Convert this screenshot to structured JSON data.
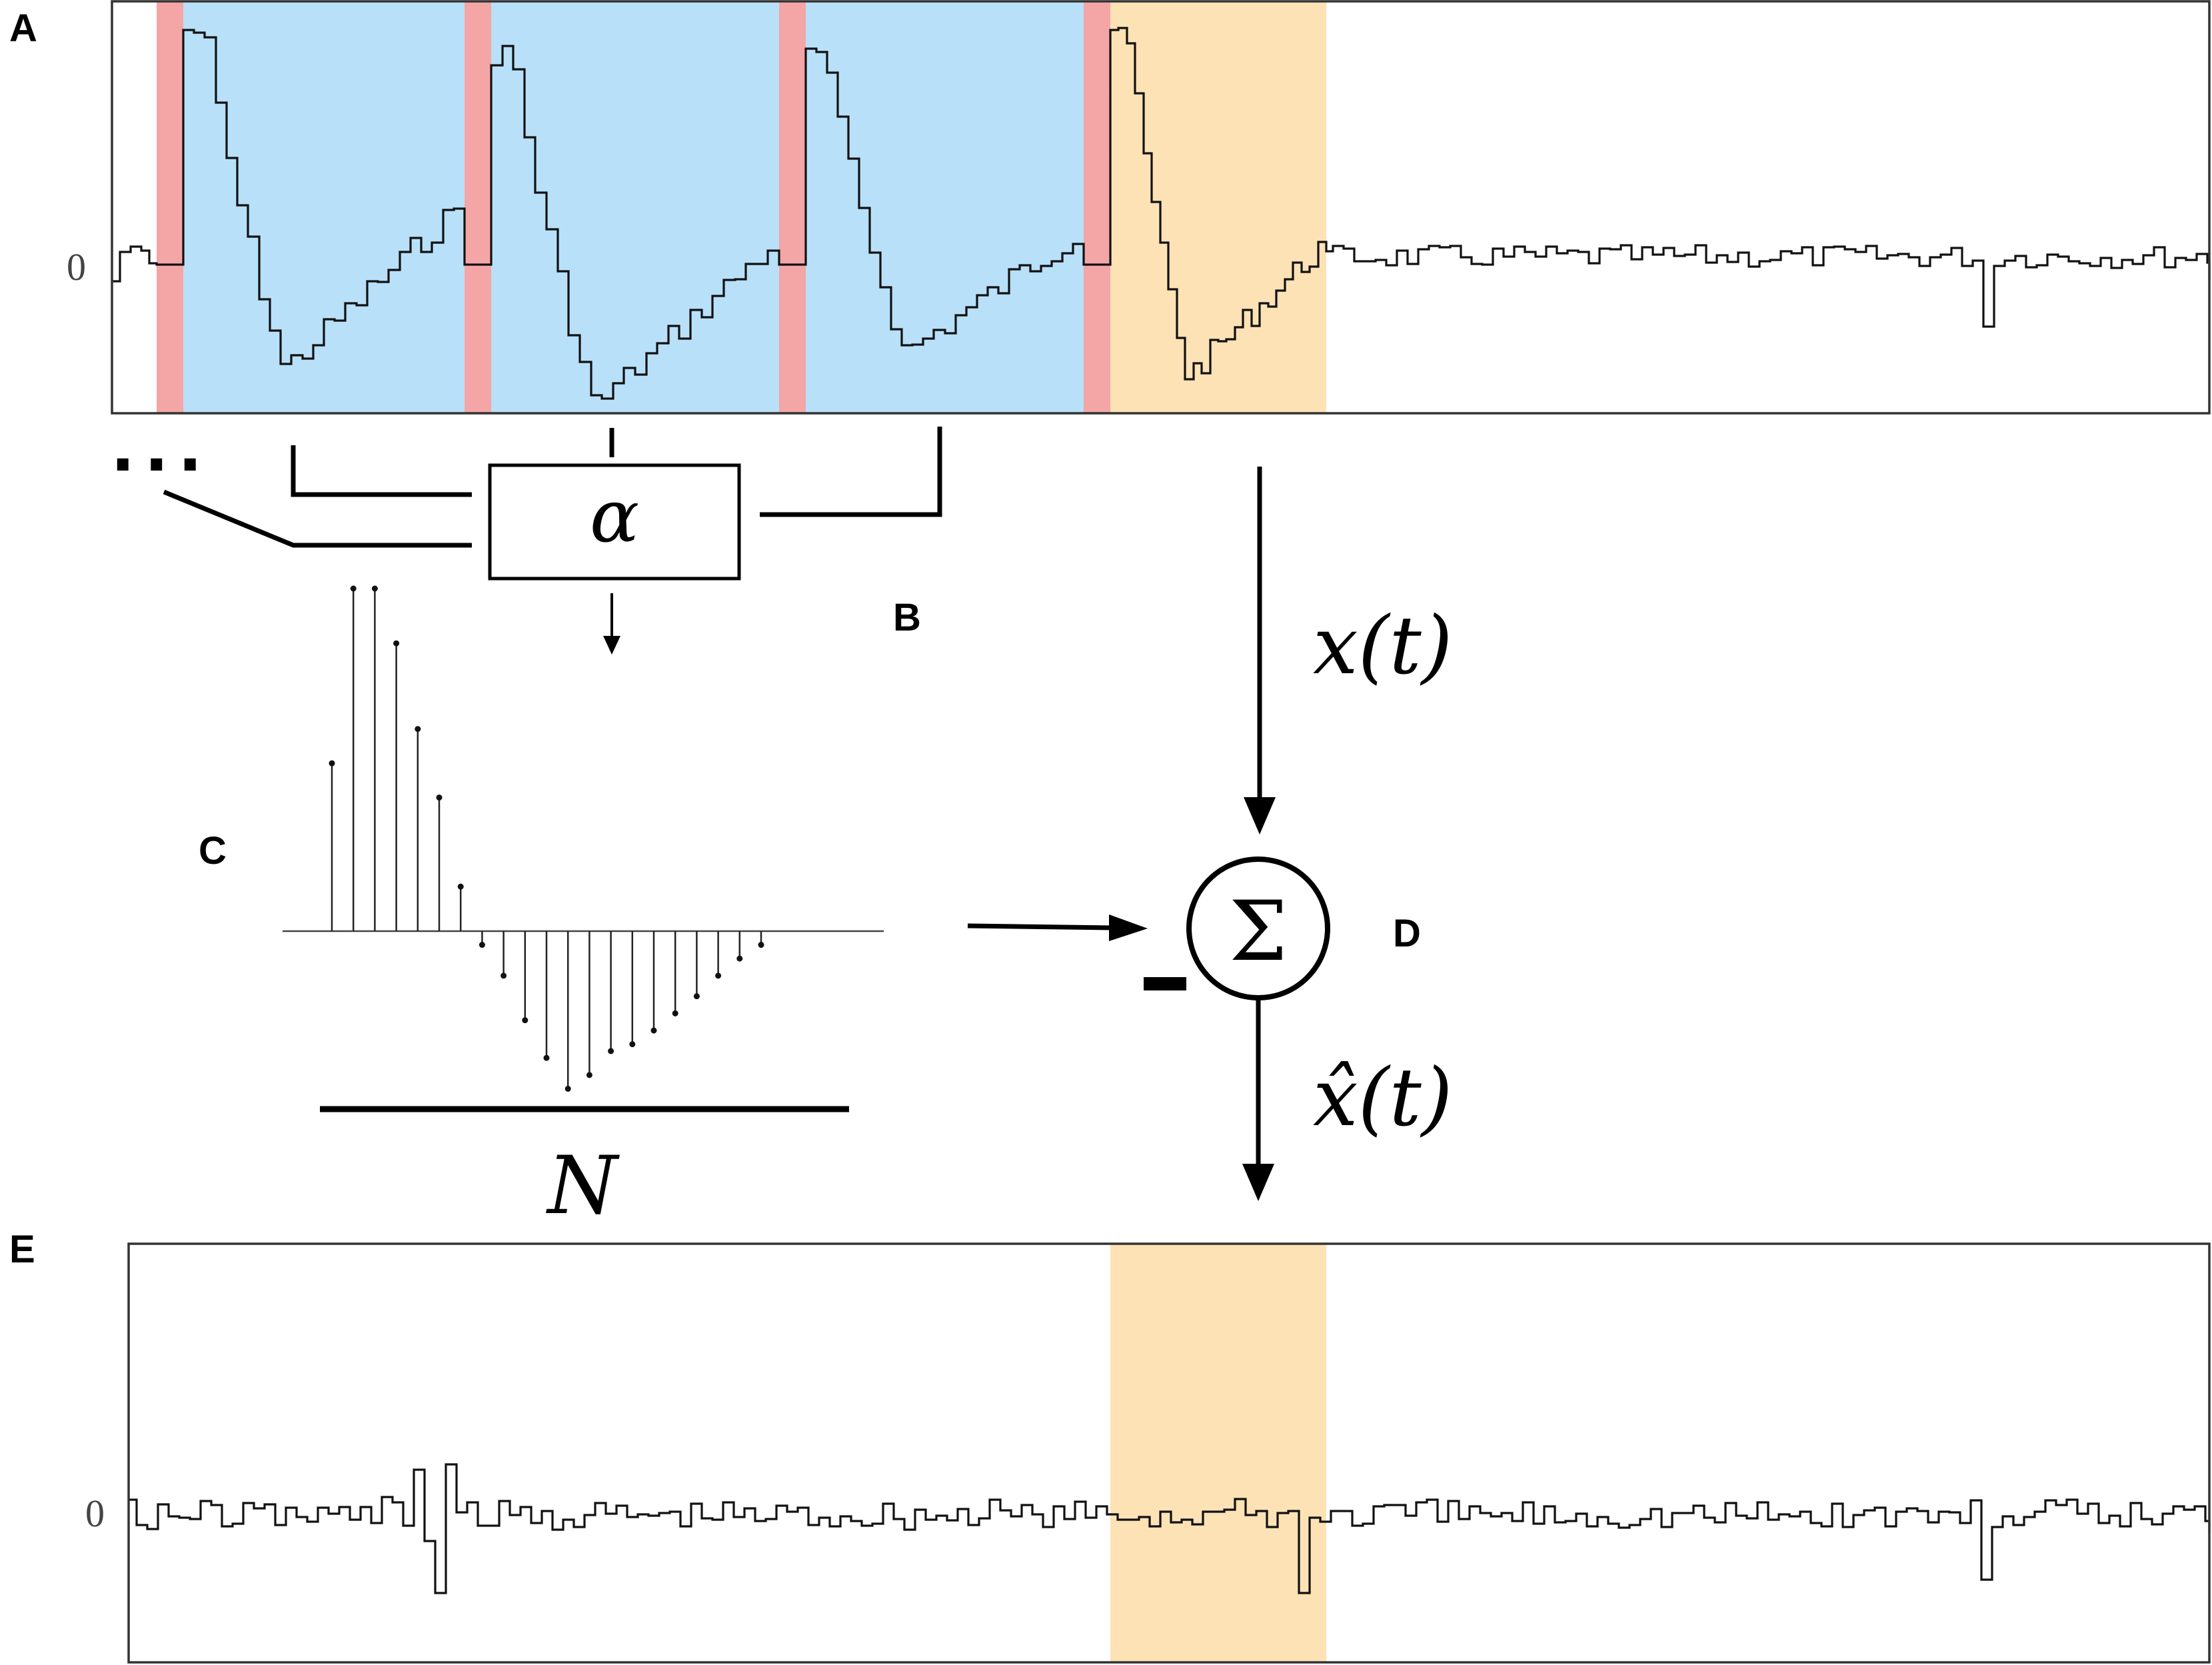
{
  "panels": {
    "a": "A",
    "b": "B",
    "c": "C",
    "d": "D",
    "e": "E"
  },
  "signal": {
    "zero_label": "0"
  },
  "operator": {
    "alpha": "α",
    "ellipsis": "..."
  },
  "template": {
    "window_label": "N"
  },
  "summation": {
    "symbol": "Σ",
    "minus": "–",
    "input_label": "x(t)",
    "output_label": "x̂(t)"
  },
  "colors": {
    "stimulus_artifact": "#f4a6a6",
    "template_window": "#b8e0f9",
    "current_window": "#fde2b6",
    "trace": "#111111"
  },
  "template_stems": [
    0.49,
    1.0,
    1.0,
    0.84,
    0.59,
    0.39,
    0.13,
    -0.04,
    -0.13,
    -0.26,
    -0.37,
    -0.46,
    -0.42,
    -0.35,
    -0.33,
    -0.29,
    -0.24,
    -0.19,
    -0.13,
    -0.08,
    -0.04
  ]
}
